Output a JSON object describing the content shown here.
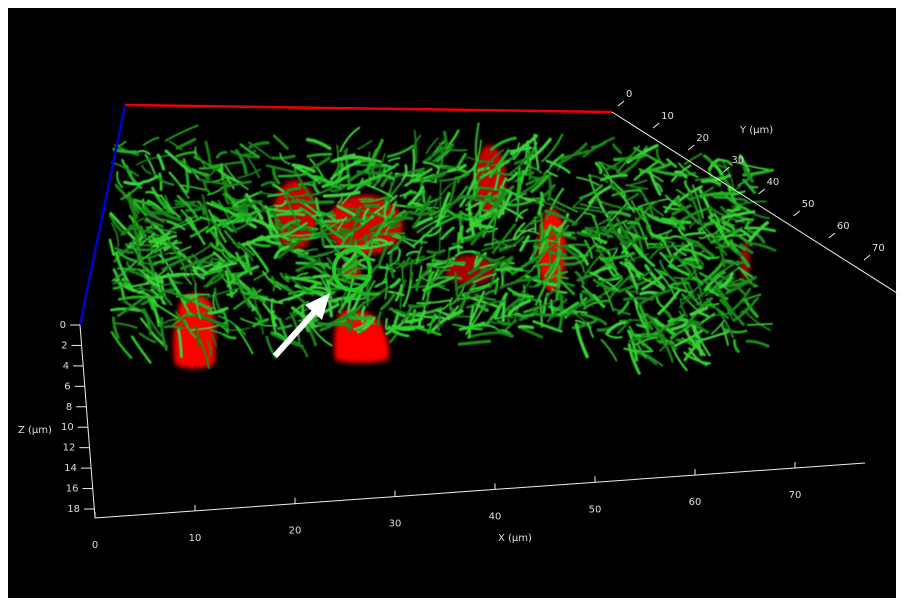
{
  "axes": {
    "x": {
      "label": "X (µm)",
      "ticks": [
        "0",
        "10",
        "20",
        "30",
        "40",
        "50",
        "60",
        "70"
      ]
    },
    "y": {
      "label": "Y (µm)",
      "ticks": [
        "0",
        "10",
        "20",
        "30",
        "40",
        "50",
        "60",
        "70"
      ]
    },
    "z": {
      "label": "Z (µm)",
      "ticks": [
        "0",
        "2",
        "4",
        "6",
        "8",
        "10",
        "12",
        "14",
        "16",
        "18"
      ]
    }
  }
}
